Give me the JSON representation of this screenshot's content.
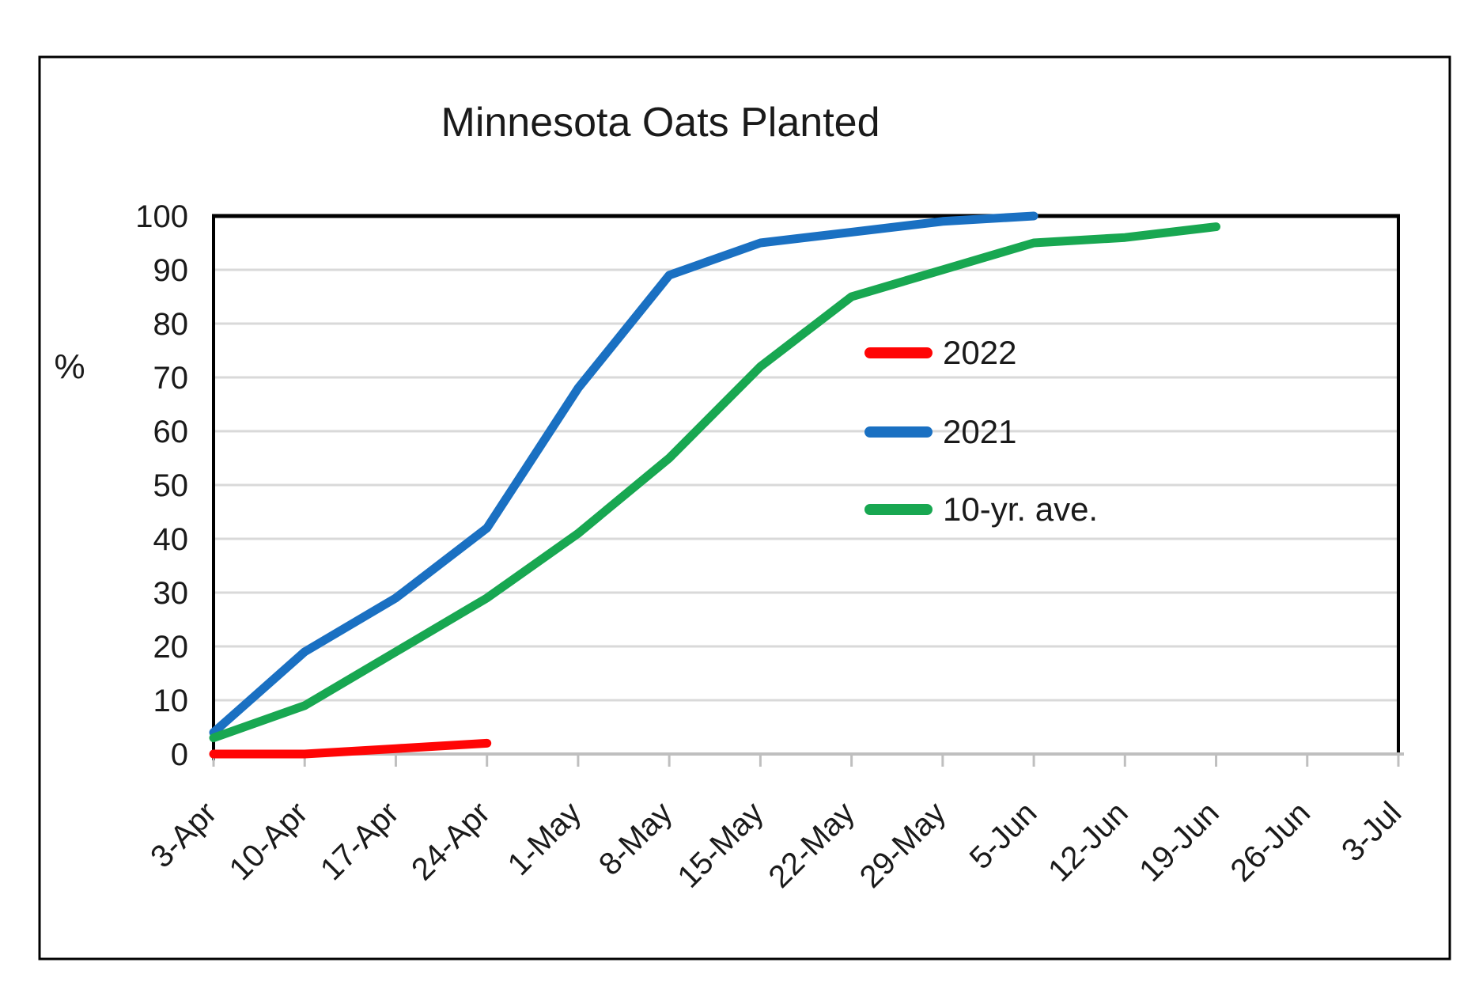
{
  "figure": {
    "title": "Minnesota Oats Planted",
    "y_axis_symbol": "%"
  },
  "legend": {
    "items": [
      "2022",
      "2021",
      "10-yr. ave."
    ]
  },
  "chart_data": {
    "type": "line",
    "title": "Minnesota Oats Planted",
    "xlabel": "",
    "ylabel": "%",
    "ylim": [
      0,
      100
    ],
    "ytick_step": 10,
    "grid": true,
    "legend_position": "right-middle",
    "categories": [
      "3-Apr",
      "10-Apr",
      "17-Apr",
      "24-Apr",
      "1-May",
      "8-May",
      "15-May",
      "22-May",
      "29-May",
      "5-Jun",
      "12-Jun",
      "19-Jun",
      "26-Jun",
      "3-Jul"
    ],
    "series": [
      {
        "name": "2022",
        "color": "#FF0505",
        "values": [
          0,
          0,
          1,
          2,
          null,
          null,
          null,
          null,
          null,
          null,
          null,
          null,
          null,
          null
        ]
      },
      {
        "name": "2021",
        "color": "#1A70C2",
        "values": [
          4,
          19,
          29,
          42,
          68,
          89,
          95,
          97,
          99,
          100,
          null,
          null,
          null,
          null
        ]
      },
      {
        "name": "10-yr. ave.",
        "color": "#18A751",
        "values": [
          3,
          9,
          19,
          29,
          41,
          55,
          72,
          85,
          90,
          95,
          96,
          98,
          null,
          null
        ]
      }
    ]
  },
  "style": {
    "gridline_color": "#D9D9D9",
    "axis_line_color": "#000000",
    "bottom_axis_color": "#BFBFBF",
    "text_color": "#1a1a1a",
    "figure_border_color": "#000000"
  }
}
